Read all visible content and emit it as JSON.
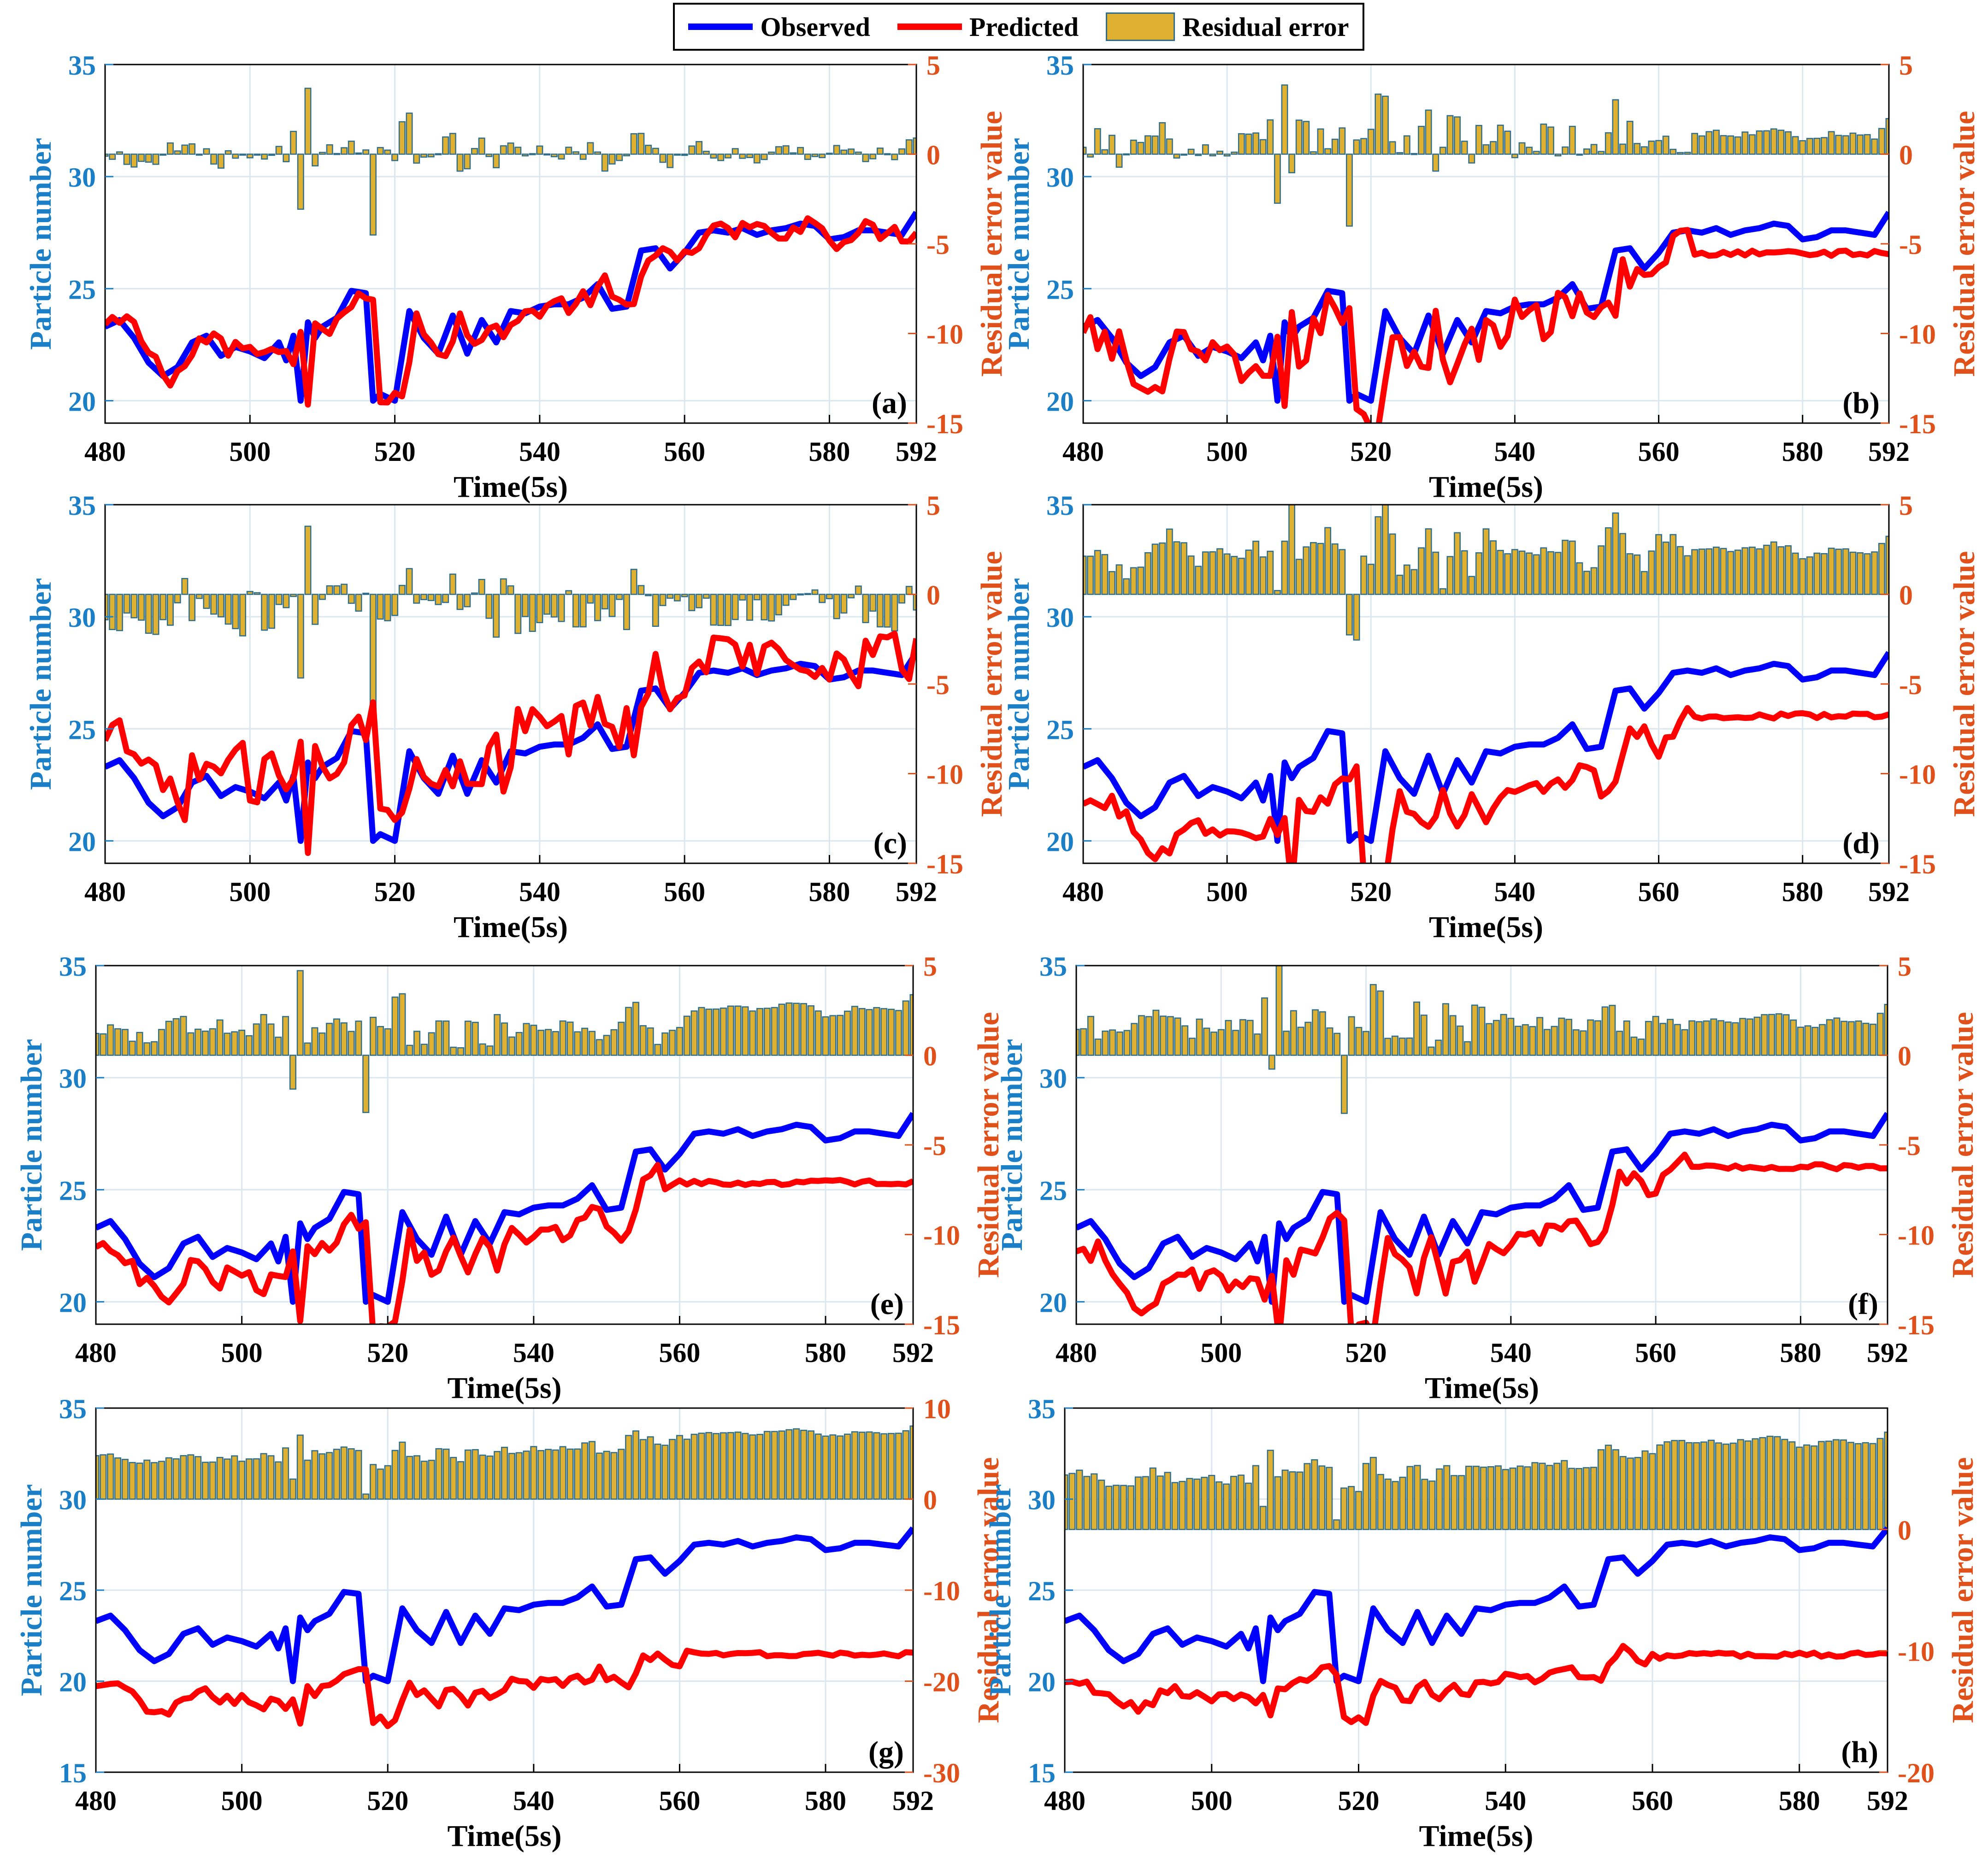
{
  "legend": {
    "observed": "Observed",
    "predicted": "Predicted",
    "residual": "Residual error"
  },
  "colors": {
    "observed": "#0000ff",
    "predicted": "#ff0000",
    "residual_fill": "#e0b030",
    "residual_edge": "#2f6d8c",
    "left_axis": "#1a7fc6",
    "right_axis": "#e0501a",
    "grid": "#dce6ee"
  },
  "chart_data": {
    "type": "line+bar",
    "xlabel": "Time(5s)",
    "ylabel_left": "Particle number",
    "ylabel_right": "Residual error value",
    "xlim": [
      480,
      592
    ],
    "xticks": [
      480,
      500,
      520,
      540,
      560,
      580,
      592
    ],
    "observed": {
      "x": [
        480,
        482,
        484,
        486,
        488,
        490,
        492,
        494,
        496,
        498,
        500,
        502,
        504,
        505,
        506,
        507,
        508,
        509,
        510,
        512,
        514,
        516,
        517,
        518,
        520,
        522,
        524,
        526,
        528,
        530,
        532,
        534,
        536,
        538,
        540,
        542,
        544,
        546,
        548,
        550,
        552,
        554,
        556,
        558,
        560,
        562,
        564,
        566,
        568,
        570,
        572,
        574,
        576,
        578,
        580,
        582,
        584,
        586,
        588,
        590,
        592
      ],
      "values": [
        23.3,
        23.6,
        22.8,
        21.7,
        21.1,
        21.5,
        22.6,
        22.9,
        22.0,
        22.4,
        22.2,
        21.9,
        22.6,
        21.8,
        22.9,
        20.0,
        23.5,
        22.8,
        23.3,
        23.7,
        24.9,
        24.8,
        20.0,
        20.3,
        20.0,
        24.0,
        22.8,
        22.1,
        23.8,
        22.1,
        23.6,
        22.6,
        24.0,
        23.9,
        24.2,
        24.3,
        24.3,
        24.6,
        25.2,
        24.1,
        24.2,
        26.7,
        26.8,
        25.9,
        26.6,
        27.5,
        27.6,
        27.5,
        27.7,
        27.4,
        27.6,
        27.7,
        27.9,
        27.8,
        27.2,
        27.3,
        27.6,
        27.6,
        27.5,
        27.4,
        28.4
      ]
    },
    "panels": [
      {
        "label": "(a)",
        "ylim_left": [
          19,
          35
        ],
        "yticks_left": [
          20,
          25,
          30,
          35
        ],
        "ylim_right": [
          -15,
          5
        ],
        "yticks_right": [
          5,
          0,
          -5,
          -10,
          -15
        ],
        "pred_offset": 0.0,
        "pred_noise": 0.45,
        "pred_lag": 1,
        "pred_flat_after": null,
        "res_scale": 1.0,
        "res_bias": 0.0
      },
      {
        "label": "(b)",
        "ylim_left": [
          19,
          35
        ],
        "yticks_left": [
          20,
          25,
          30,
          35
        ],
        "ylim_right": [
          -15,
          5
        ],
        "yticks_right": [
          5,
          0,
          -5,
          -10,
          -15
        ],
        "pred_offset": -0.6,
        "pred_noise": 1.1,
        "pred_lag": 1,
        "pred_flat_after": 565,
        "res_scale": 1.0,
        "res_bias": 0.4
      },
      {
        "label": "(c)",
        "ylim_left": [
          19,
          35
        ],
        "yticks_left": [
          20,
          25,
          30,
          35
        ],
        "ylim_right": [
          -15,
          5
        ],
        "yticks_right": [
          5,
          0,
          -5,
          -10,
          -15
        ],
        "pred_offset": 0.7,
        "pred_noise": 1.3,
        "pred_lag": 1,
        "pred_flat_after": null,
        "res_scale": 1.0,
        "res_bias": -0.8
      },
      {
        "label": "(d)",
        "ylim_left": [
          19,
          35
        ],
        "yticks_left": [
          20,
          25,
          30,
          35
        ],
        "ylim_right": [
          -15,
          5
        ],
        "yticks_right": [
          5,
          0,
          -5,
          -10,
          -15
        ],
        "pred_offset": -1.8,
        "pred_noise": 0.35,
        "pred_lag": 2,
        "pred_flat_after": 565,
        "res_scale": 1.0,
        "res_bias": 1.6
      },
      {
        "label": "(e)",
        "ylim_left": [
          19,
          35
        ],
        "yticks_left": [
          20,
          25,
          30,
          35
        ],
        "ylim_right": [
          -15,
          5
        ],
        "yticks_right": [
          5,
          0,
          -5,
          -10,
          -15
        ],
        "pred_offset": -1.1,
        "pred_noise": 0.5,
        "pred_lag": 1,
        "pred_flat_after": 560,
        "res_scale": 1.0,
        "res_bias": 1.2
      },
      {
        "label": "(f)",
        "ylim_left": [
          19,
          35
        ],
        "yticks_left": [
          20,
          25,
          30,
          35
        ],
        "ylim_right": [
          -15,
          5
        ],
        "yticks_right": [
          5,
          0,
          -5,
          -10,
          -15
        ],
        "pred_offset": -1.3,
        "pred_noise": 0.45,
        "pred_lag": 1,
        "pred_flat_after": 565,
        "res_scale": 1.0,
        "res_bias": 1.3
      },
      {
        "label": "(g)",
        "ylim_left": [
          15,
          35
        ],
        "yticks_left": [
          15,
          20,
          25,
          30,
          35
        ],
        "ylim_right": [
          -30,
          10
        ],
        "yticks_right": [
          10,
          0,
          -10,
          -20,
          -30
        ],
        "pred_offset": -3.2,
        "pred_noise": 0.35,
        "pred_lag": 1,
        "pred_flat_after": 562,
        "pred_squash": 0.55,
        "res_scale": 1.0,
        "res_bias": 4.0
      },
      {
        "label": "(h)",
        "ylim_left": [
          15,
          35
        ],
        "yticks_left": [
          15,
          20,
          25,
          30,
          35
        ],
        "ylim_right": [
          -20,
          10
        ],
        "yticks_right": [
          0,
          -10,
          -20
        ],
        "pred_offset": -3.0,
        "pred_noise": 0.35,
        "pred_lag": 1,
        "pred_flat_after": 562,
        "pred_squash": 0.55,
        "res_scale": 1.0,
        "res_bias": 3.8
      }
    ]
  }
}
